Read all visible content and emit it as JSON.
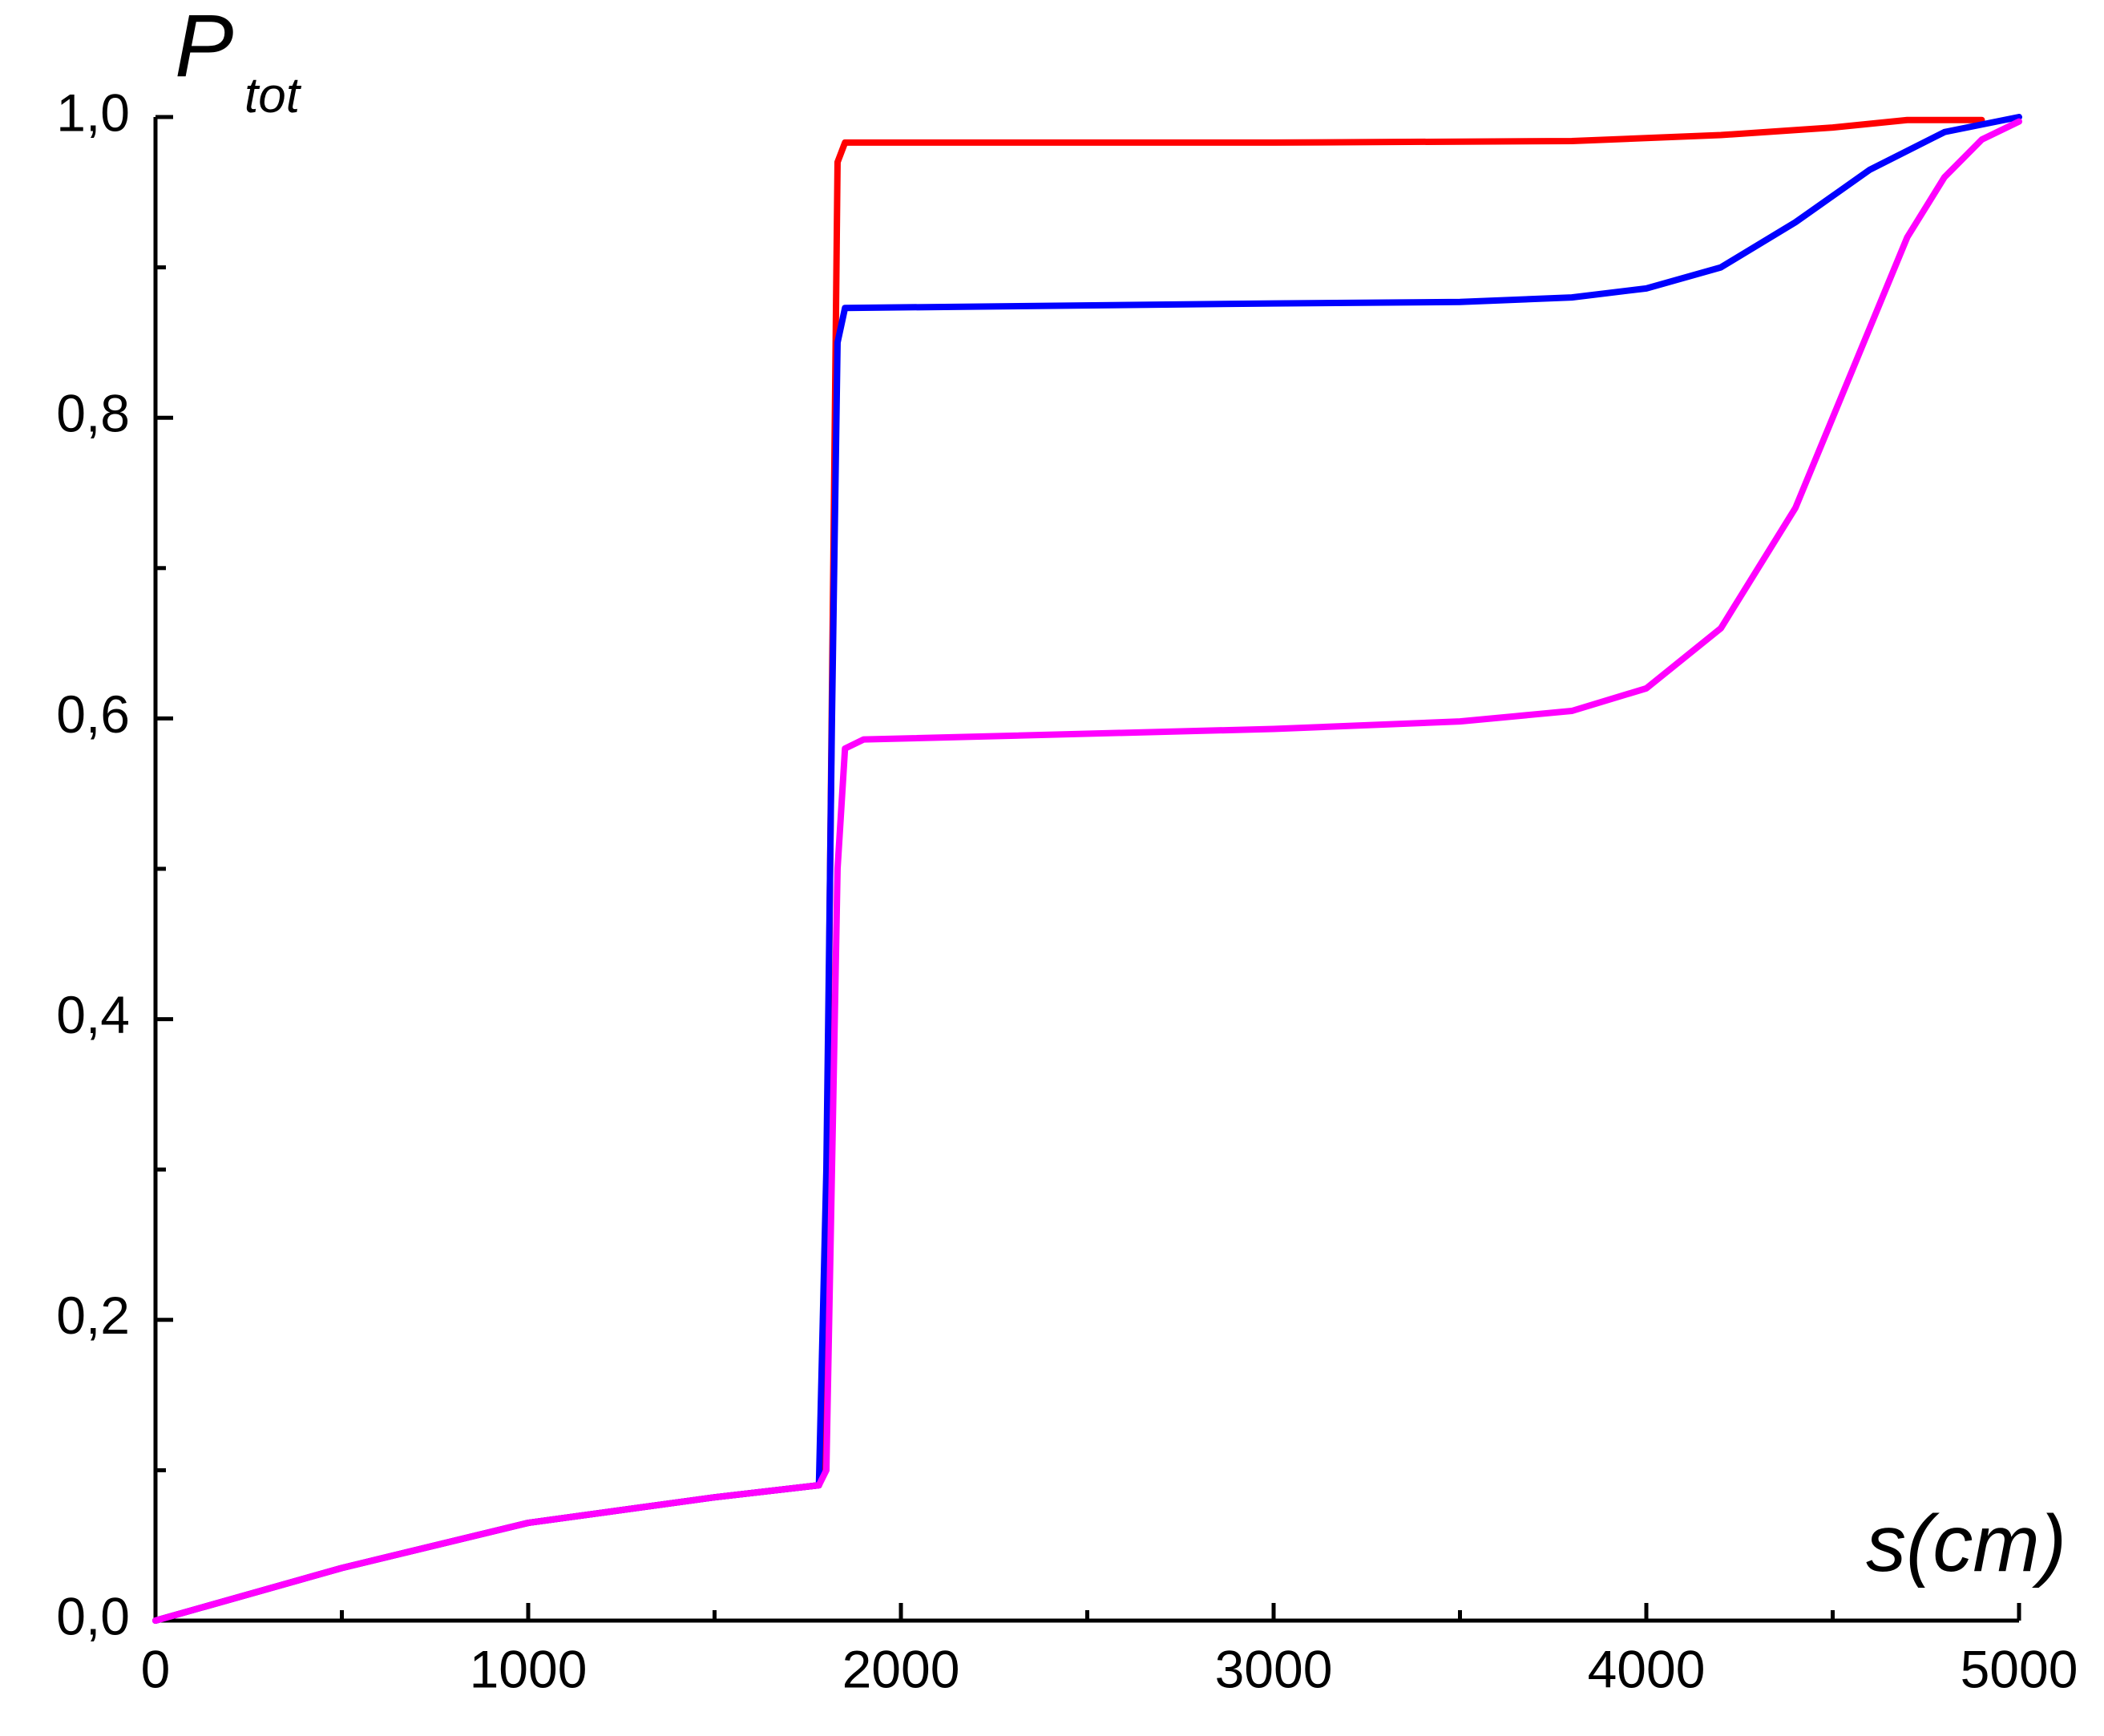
{
  "chart_data": {
    "type": "line",
    "ylabel": "P",
    "ylabel_sub": "tot",
    "xlabel": "s(cm)",
    "xlim": [
      0,
      5000
    ],
    "ylim": [
      0,
      1
    ],
    "xticks": [
      0,
      1000,
      2000,
      3000,
      4000,
      5000
    ],
    "xticks_minor": [
      500,
      1500,
      2500,
      3500,
      4500
    ],
    "yticks": [
      {
        "value": 0,
        "label": "0,0"
      },
      {
        "value": 0.2,
        "label": "0,2"
      },
      {
        "value": 0.4,
        "label": "0,4"
      },
      {
        "value": 0.6,
        "label": "0,6"
      },
      {
        "value": 0.8,
        "label": "0,8"
      },
      {
        "value": 1,
        "label": "1,0"
      }
    ],
    "yticks_minor": [
      0.1,
      0.3,
      0.5,
      0.7,
      0.9
    ],
    "series": [
      {
        "color": "#ff0000",
        "x": [
          0,
          500,
          1000,
          1500,
          1780,
          1795,
          1810,
          1830,
          1850,
          3000,
          3800,
          4200,
          4500,
          4700,
          4900
        ],
        "values": [
          0,
          0.035,
          0.065,
          0.082,
          0.09,
          0.12,
          0.5,
          0.97,
          0.983,
          0.983,
          0.984,
          0.988,
          0.993,
          0.998,
          0.998
        ]
      },
      {
        "color": "#0000ff",
        "x": [
          0,
          500,
          1000,
          1500,
          1780,
          1800,
          1815,
          1830,
          1850,
          3000,
          3500,
          3800,
          4000,
          4200,
          4400,
          4600,
          4800,
          5000
        ],
        "values": [
          0,
          0.035,
          0.065,
          0.082,
          0.09,
          0.3,
          0.6,
          0.85,
          0.873,
          0.876,
          0.877,
          0.88,
          0.886,
          0.9,
          0.93,
          0.965,
          0.99,
          1.0
        ]
      },
      {
        "color": "#ff00ff",
        "x": [
          0,
          500,
          1000,
          1500,
          1780,
          1800,
          1815,
          1830,
          1850,
          1900,
          3000,
          3500,
          3800,
          4000,
          4200,
          4400,
          4500,
          4600,
          4700,
          4800,
          4900,
          5000
        ],
        "values": [
          0,
          0.035,
          0.065,
          0.082,
          0.09,
          0.1,
          0.3,
          0.5,
          0.58,
          0.586,
          0.593,
          0.598,
          0.605,
          0.62,
          0.66,
          0.74,
          0.8,
          0.86,
          0.92,
          0.96,
          0.985,
          0.997
        ]
      }
    ]
  }
}
